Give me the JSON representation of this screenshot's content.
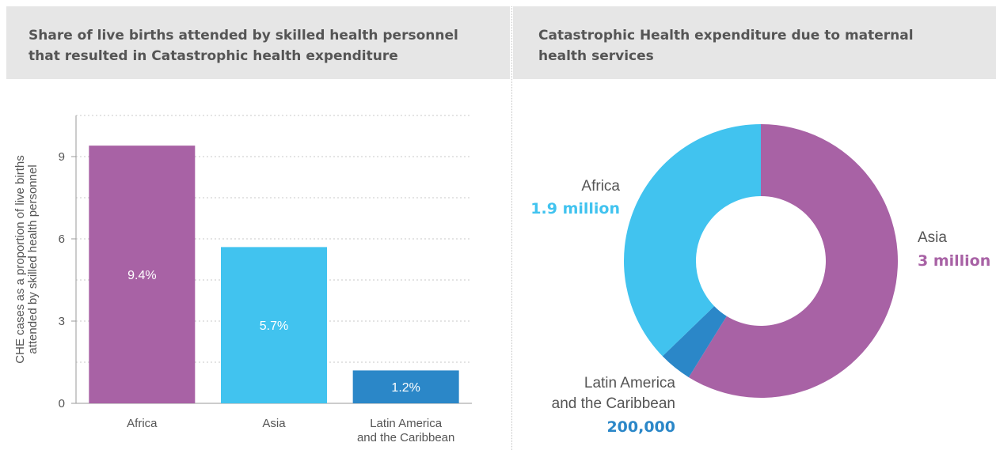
{
  "left_panel": {
    "title_line1": "Share of live births attended by skilled health personnel",
    "title_line2": "that resulted in Catastrophic health expenditure"
  },
  "right_panel": {
    "title_line1": "Catastrophic Health expenditure due to maternal",
    "title_line2": "health services"
  },
  "chart_data": [
    {
      "type": "bar",
      "title": "Share of live births attended by skilled health personnel that resulted in Catastrophic health expenditure",
      "ylabel_lines": [
        "CHE cases as a proportion of live births",
        "attended by skilled health personnel"
      ],
      "xlabel": "",
      "ylim": [
        0,
        10.5
      ],
      "yticks": [
        0,
        3,
        6,
        9
      ],
      "ytick_labels": [
        "0",
        "3",
        "6",
        "9"
      ],
      "grid": true,
      "categories": [
        [
          "Africa"
        ],
        [
          "Asia"
        ],
        [
          "Latin America",
          "and the Caribbean"
        ]
      ],
      "values": [
        9.4,
        5.7,
        1.2
      ],
      "data_labels": [
        "9.4%",
        "5.7%",
        "1.2%"
      ],
      "colors": [
        "#a862a5",
        "#41c3ef",
        "#2b87c8"
      ]
    },
    {
      "type": "pie",
      "variant": "donut",
      "title": "Catastrophic Health expenditure due to maternal health services",
      "slices": [
        {
          "name": "Asia",
          "value": 3000000,
          "value_label": "3 million",
          "color": "#a862a5"
        },
        {
          "name_lines": [
            "Latin America",
            "and the Caribbean"
          ],
          "value": 200000,
          "value_label": "200,000",
          "color": "#2b87c8"
        },
        {
          "name": "Africa",
          "value": 1900000,
          "value_label": "1.9 million",
          "color": "#41c3ef"
        }
      ]
    }
  ]
}
